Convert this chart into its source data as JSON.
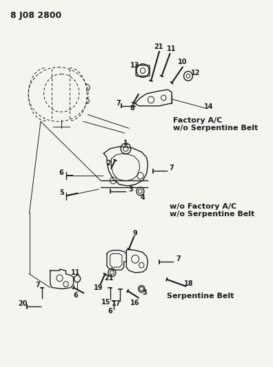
{
  "title": "8 J08 2800",
  "bg": "#f5f5f0",
  "fg": "#1a1a1a",
  "fig_w": 3.96,
  "fig_h": 5.33,
  "dpi": 100,
  "section_labels": {
    "top": [
      "Factory A/C",
      "w/o Serpentine Belt"
    ],
    "mid": [
      "w/o Factory A/C",
      "w/o Serpentine Belt"
    ],
    "bot": [
      "Serpentine Belt"
    ]
  }
}
